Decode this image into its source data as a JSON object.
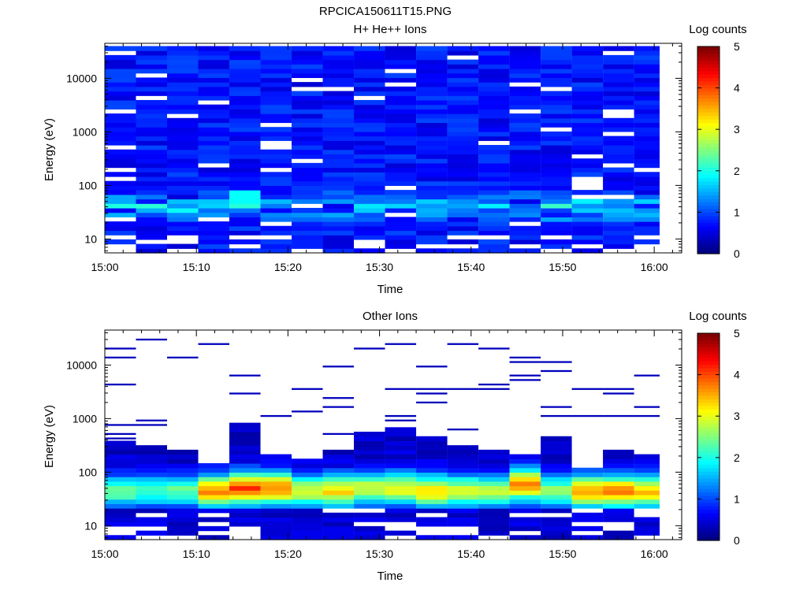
{
  "page_title": "RPCICA150611T15.PNG",
  "chart_data": [
    {
      "type": "heatmap",
      "title": "H+ He++ Ions",
      "xlabel": "Time",
      "ylabel": "Energy (eV)",
      "x_ticks": [
        "15:00",
        "15:10",
        "15:20",
        "15:30",
        "15:40",
        "15:50",
        "16:00"
      ],
      "x_range_minutes": [
        0,
        63
      ],
      "y_scale": "log",
      "y_range": [
        5.5,
        45000
      ],
      "y_ticks": [
        "10",
        "100",
        "1000",
        "10000"
      ],
      "colorbar": {
        "label": "Log counts",
        "range": [
          0,
          5
        ],
        "ticks": [
          "0",
          "1",
          "2",
          "3",
          "4",
          "5"
        ]
      },
      "time_columns_minutes": [
        0,
        3.4,
        6.8,
        10.2,
        13.6,
        17,
        20.4,
        23.8,
        27.2,
        30.6,
        34,
        37.4,
        40.8,
        44.2,
        47.6,
        51,
        54.4,
        57.8,
        61.2
      ],
      "profile": {
        "background_level": 0.7,
        "low_energy_bump": 1.4,
        "bright_spot": {
          "time_min": 14.5,
          "energy_ev": 60,
          "level": 1.9
        },
        "white_gap_fraction": 0.07
      }
    },
    {
      "type": "heatmap",
      "title": "Other Ions",
      "xlabel": "Time",
      "ylabel": "Energy (eV)",
      "x_ticks": [
        "15:00",
        "15:10",
        "15:20",
        "15:30",
        "15:40",
        "15:50",
        "16:00"
      ],
      "x_range_minutes": [
        0,
        63
      ],
      "y_scale": "log",
      "y_range": [
        5.5,
        45000
      ],
      "y_ticks": [
        "10",
        "100",
        "1000",
        "10000"
      ],
      "colorbar": {
        "label": "Log counts",
        "range": [
          0,
          5
        ],
        "ticks": [
          "0",
          "1",
          "2",
          "3",
          "4",
          "5"
        ]
      },
      "time_columns_minutes": [
        0,
        3.4,
        6.8,
        10.2,
        13.6,
        17,
        20.4,
        23.8,
        27.2,
        30.6,
        34,
        37.4,
        40.8,
        44.2,
        47.6,
        51,
        54.4,
        57.8,
        61.2
      ],
      "column_tops_ev": [
        400,
        350,
        250,
        140,
        900,
        220,
        180,
        280,
        600,
        700,
        450,
        300,
        250,
        220,
        450,
        130,
        280,
        220,
        450
      ],
      "column_peaks": [
        {
          "energy_ev": 45,
          "level": 2.0
        },
        {
          "energy_ev": 45,
          "level": 1.8
        },
        {
          "energy_ev": 45,
          "level": 2.0
        },
        {
          "energy_ev": 45,
          "level": 3.3
        },
        {
          "energy_ev": 50,
          "level": 3.7
        },
        {
          "energy_ev": 50,
          "level": 3.4
        },
        {
          "energy_ev": 45,
          "level": 2.5
        },
        {
          "energy_ev": 45,
          "level": 2.9
        },
        {
          "energy_ev": 50,
          "level": 2.6
        },
        {
          "energy_ev": 50,
          "level": 2.7
        },
        {
          "energy_ev": 45,
          "level": 2.9
        },
        {
          "energy_ev": 45,
          "level": 2.5
        },
        {
          "energy_ev": 45,
          "level": 2.5
        },
        {
          "energy_ev": 60,
          "level": 3.4
        },
        {
          "energy_ev": 45,
          "level": 2.2
        },
        {
          "energy_ev": 45,
          "level": 3.2
        },
        {
          "energy_ev": 45,
          "level": 3.3
        },
        {
          "energy_ev": 45,
          "level": 3.0
        },
        {
          "energy_ev": 45,
          "level": 3.5
        }
      ],
      "sparse_high_energy_lines_ev": [
        [
          20000,
          15000,
          4200,
          780,
          500,
          400
        ],
        [
          28000,
          900,
          800
        ],
        [
          13000
        ],
        [
          26000
        ],
        [
          6000,
          2900,
          2800
        ],
        [
          1200
        ],
        [
          3900,
          1300
        ],
        [
          8800,
          2400,
          1800,
          520
        ],
        [
          22000
        ],
        [
          24000,
          3600,
          1100,
          900
        ],
        [
          9500,
          3500,
          3000,
          2200
        ],
        [
          26000,
          3700,
          600
        ],
        [
          21000,
          4500,
          4000,
          3600
        ],
        [
          15000,
          11000,
          7000,
          4800
        ],
        [
          11000,
          8000,
          1500,
          1100
        ],
        [
          3700,
          1100
        ],
        [
          3400,
          3000,
          1100
        ],
        [
          7000,
          1600,
          1100
        ],
        [
          1300
        ]
      ]
    }
  ]
}
